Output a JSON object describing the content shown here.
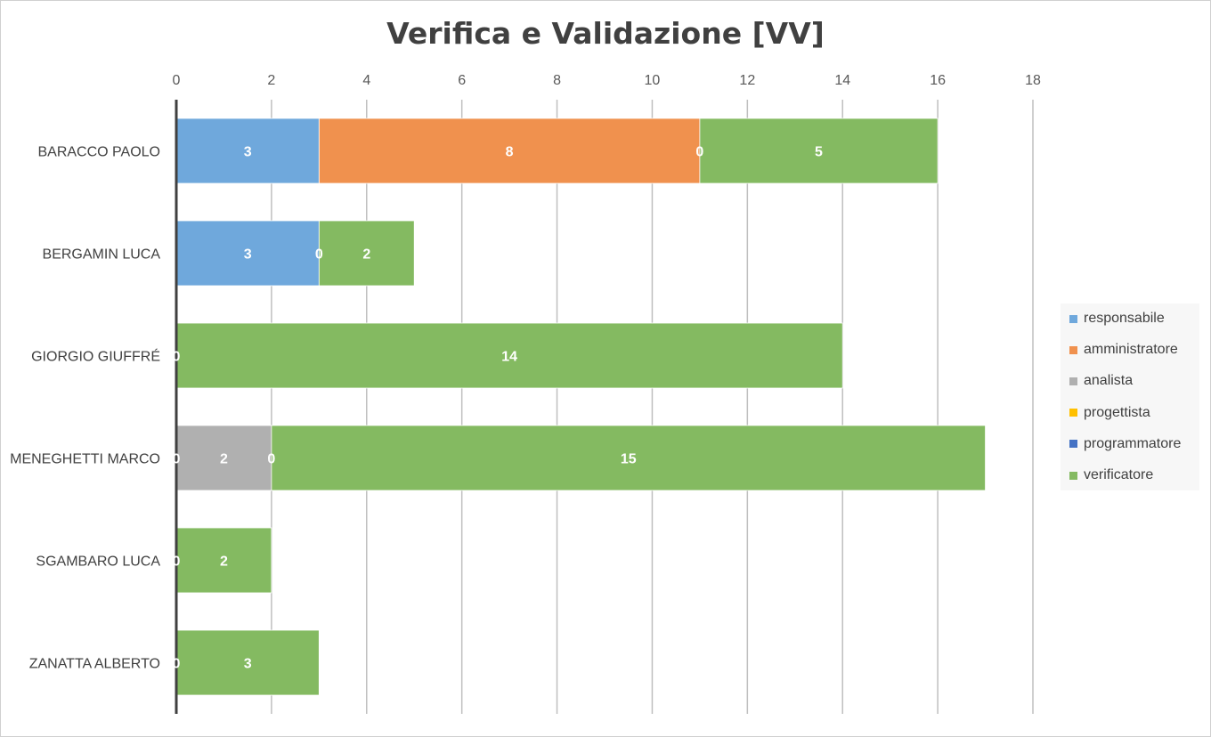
{
  "chart_data": {
    "type": "bar",
    "orientation": "horizontal",
    "stacked": true,
    "title": "Verifica e Validazione [VV]",
    "xlim": [
      0,
      18
    ],
    "xticks": [
      0,
      2,
      4,
      6,
      8,
      10,
      12,
      14,
      16,
      18
    ],
    "xaxis_position": "top",
    "grid": true,
    "legend_position": "right",
    "categories": [
      "BARACCO PAOLO",
      "BERGAMIN LUCA",
      "GIORGIO GIUFFRÉ",
      "MENEGHETTI MARCO",
      "SGAMBARO LUCA",
      "ZANATTA ALBERTO"
    ],
    "series": [
      {
        "name": "responsabile",
        "color": "#6FA8DC",
        "values": [
          3,
          3,
          null,
          null,
          null,
          null
        ],
        "labels": [
          "3",
          "3",
          "",
          "",
          "",
          ""
        ]
      },
      {
        "name": "amministratore",
        "color": "#F0914E",
        "values": [
          8,
          0,
          null,
          0,
          0,
          0
        ],
        "labels": [
          "8",
          "0",
          "",
          "0",
          "0",
          "0"
        ]
      },
      {
        "name": "analista",
        "color": "#B0B0B0",
        "values": [
          null,
          null,
          null,
          2,
          null,
          null
        ],
        "labels": [
          "",
          "",
          "",
          "2",
          "",
          ""
        ]
      },
      {
        "name": "progettista",
        "color": "#FFC000",
        "values": [
          0,
          null,
          0,
          0,
          null,
          null
        ],
        "labels": [
          "0",
          "",
          "0",
          "0",
          "",
          ""
        ]
      },
      {
        "name": "programmatore",
        "color": "#4472C4",
        "values": [
          null,
          null,
          null,
          null,
          null,
          null
        ],
        "labels": [
          "",
          "",
          "",
          "",
          "",
          ""
        ]
      },
      {
        "name": "verificatore",
        "color": "#84BA61",
        "values": [
          5,
          2,
          14,
          15,
          2,
          3
        ],
        "labels": [
          "5",
          "2",
          "14",
          "15",
          "2",
          "3"
        ]
      }
    ]
  }
}
